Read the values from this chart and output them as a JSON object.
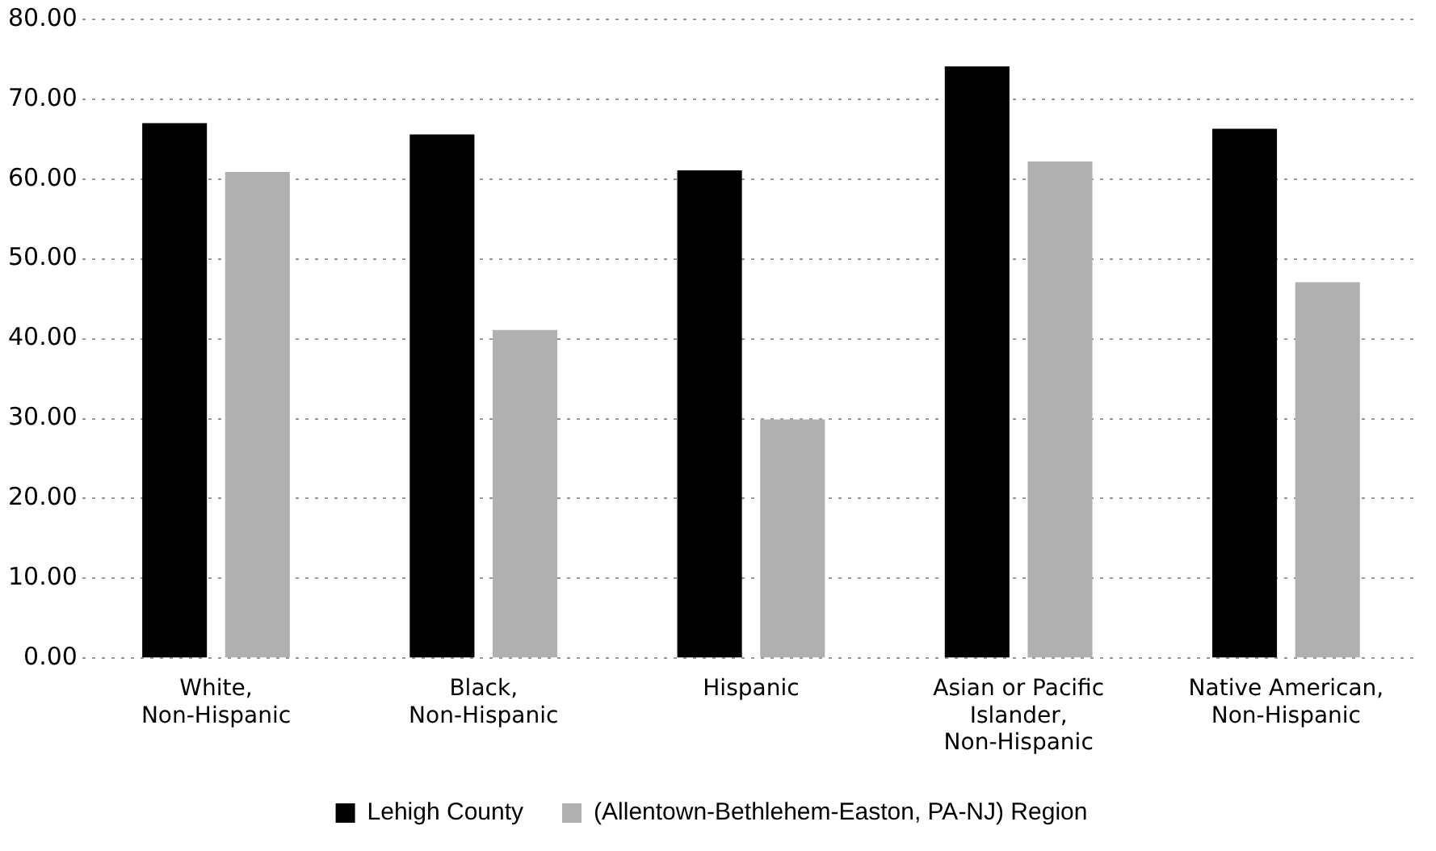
{
  "chart_data": {
    "type": "bar",
    "categories": [
      "White, Non-Hispanic",
      "Black, Non-Hispanic",
      "Hispanic",
      "Asian or Pacific Islander, Non-Hispanic",
      "Native American, Non-Hispanic"
    ],
    "series": [
      {
        "name": "Lehigh County",
        "color": "#000000",
        "values": [
          67.0,
          65.6,
          61.1,
          74.1,
          66.3
        ]
      },
      {
        "name": "(Allentown-Bethlehem-Easton, PA-NJ) Region",
        "color": "#b0b0b0",
        "values": [
          60.9,
          41.1,
          29.9,
          62.2,
          47.1
        ]
      }
    ],
    "ylim": [
      0,
      80
    ],
    "yticks": [
      {
        "value": 0,
        "label": "0.00"
      },
      {
        "value": 10,
        "label": "10.00"
      },
      {
        "value": 20,
        "label": "20.00"
      },
      {
        "value": 30,
        "label": "30.00"
      },
      {
        "value": 40,
        "label": "40.00"
      },
      {
        "value": 50,
        "label": "50.00"
      },
      {
        "value": 60,
        "label": "60.00"
      },
      {
        "value": 70,
        "label": "70.00"
      },
      {
        "value": 80,
        "label": "80.00"
      }
    ],
    "grid": "y",
    "legend": "bottom"
  }
}
